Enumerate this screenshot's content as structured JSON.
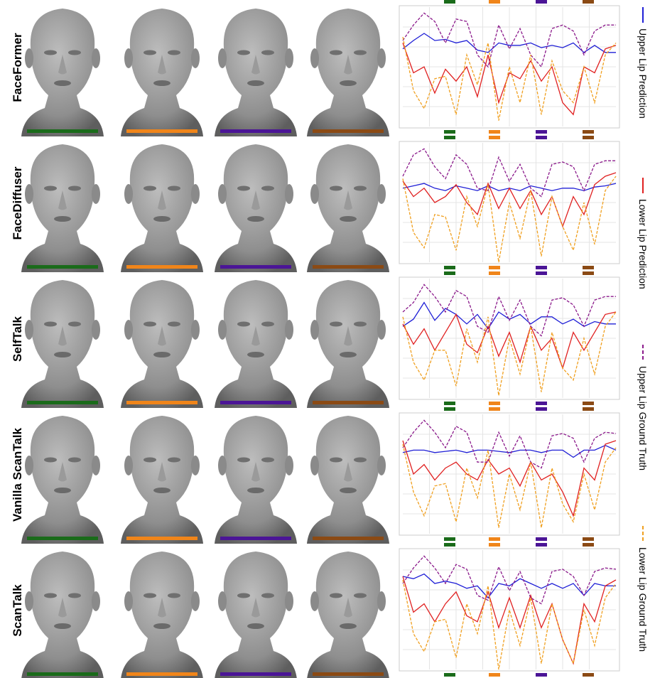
{
  "rows": [
    "FaceFormer",
    "FaceDiffuser",
    "SelfTalk",
    "Vanilla ScanTalk",
    "ScanTalk"
  ],
  "frame_colors": [
    "#1a6b1a",
    "#f0851a",
    "#4b1596",
    "#8b4a14"
  ],
  "chart_data": [
    {
      "type": "line",
      "grid": true,
      "xlim": [
        0,
        100
      ],
      "ylim": [
        0,
        1
      ],
      "markers": [
        22,
        43,
        65,
        87
      ],
      "x": [
        0,
        5,
        10,
        15,
        20,
        25,
        30,
        35,
        40,
        45,
        50,
        55,
        60,
        65,
        70,
        75,
        80,
        85,
        90,
        95,
        100
      ],
      "series": [
        {
          "name": "Upper Lip Prediction",
          "color": "#1f1fd6",
          "style": "solid",
          "values": [
            0.65,
            0.72,
            0.78,
            0.72,
            0.73,
            0.7,
            0.72,
            0.64,
            0.62,
            0.7,
            0.68,
            0.68,
            0.7,
            0.66,
            0.68,
            0.66,
            0.7,
            0.62,
            0.68,
            0.62,
            0.62
          ]
        },
        {
          "name": "Lower Lip Prediction",
          "color": "#e02020",
          "style": "solid",
          "values": [
            0.7,
            0.45,
            0.5,
            0.28,
            0.48,
            0.38,
            0.5,
            0.25,
            0.6,
            0.2,
            0.45,
            0.4,
            0.55,
            0.38,
            0.5,
            0.2,
            0.1,
            0.5,
            0.45,
            0.65,
            0.68
          ]
        },
        {
          "name": "Upper Lip Ground Truth",
          "color": "#8b1a8b",
          "style": "dashed",
          "values": [
            0.72,
            0.85,
            0.95,
            0.88,
            0.7,
            0.9,
            0.88,
            0.6,
            0.5,
            0.85,
            0.65,
            0.82,
            0.6,
            0.5,
            0.82,
            0.85,
            0.8,
            0.6,
            0.8,
            0.85,
            0.85
          ]
        },
        {
          "name": "Lower Lip Ground Truth",
          "color": "#f0a020",
          "style": "dashed",
          "values": [
            0.75,
            0.3,
            0.15,
            0.4,
            0.42,
            0.1,
            0.6,
            0.35,
            0.7,
            0.05,
            0.5,
            0.2,
            0.6,
            0.1,
            0.55,
            0.3,
            0.2,
            0.5,
            0.2,
            0.6,
            0.7
          ]
        }
      ]
    },
    {
      "type": "line",
      "grid": true,
      "xlim": [
        0,
        100
      ],
      "ylim": [
        0,
        1
      ],
      "markers": [
        22,
        43,
        65,
        87
      ],
      "x": [
        0,
        5,
        10,
        15,
        20,
        25,
        30,
        35,
        40,
        45,
        50,
        55,
        60,
        65,
        70,
        75,
        80,
        85,
        90,
        95,
        100
      ],
      "series": [
        {
          "name": "Upper Lip Prediction",
          "color": "#1f1fd6",
          "style": "solid",
          "values": [
            0.62,
            0.64,
            0.66,
            0.62,
            0.6,
            0.64,
            0.62,
            0.6,
            0.64,
            0.6,
            0.62,
            0.6,
            0.64,
            0.62,
            0.6,
            0.62,
            0.62,
            0.6,
            0.63,
            0.64,
            0.66
          ]
        },
        {
          "name": "Lower Lip Prediction",
          "color": "#e02020",
          "style": "solid",
          "values": [
            0.68,
            0.55,
            0.62,
            0.5,
            0.55,
            0.65,
            0.5,
            0.4,
            0.66,
            0.45,
            0.62,
            0.45,
            0.6,
            0.4,
            0.55,
            0.3,
            0.55,
            0.4,
            0.65,
            0.72,
            0.75
          ]
        },
        {
          "name": "Upper Lip Ground Truth",
          "color": "#8b1a8b",
          "style": "dashed",
          "values": [
            0.72,
            0.9,
            0.95,
            0.8,
            0.7,
            0.9,
            0.82,
            0.62,
            0.6,
            0.88,
            0.68,
            0.82,
            0.62,
            0.55,
            0.82,
            0.84,
            0.8,
            0.6,
            0.82,
            0.85,
            0.85
          ]
        },
        {
          "name": "Lower Lip Ground Truth",
          "color": "#f0a020",
          "style": "dashed",
          "values": [
            0.7,
            0.25,
            0.12,
            0.4,
            0.38,
            0.1,
            0.55,
            0.3,
            0.65,
            0.0,
            0.5,
            0.2,
            0.6,
            0.05,
            0.55,
            0.3,
            0.1,
            0.5,
            0.15,
            0.6,
            0.72
          ]
        }
      ]
    },
    {
      "type": "line",
      "grid": true,
      "xlim": [
        0,
        100
      ],
      "ylim": [
        0,
        1
      ],
      "markers": [
        22,
        43,
        65,
        87
      ],
      "x": [
        0,
        5,
        10,
        15,
        20,
        25,
        30,
        35,
        40,
        45,
        50,
        55,
        60,
        65,
        70,
        75,
        80,
        85,
        90,
        95,
        100
      ],
      "series": [
        {
          "name": "Upper Lip Prediction",
          "color": "#1f1fd6",
          "style": "solid",
          "values": [
            0.6,
            0.66,
            0.8,
            0.65,
            0.75,
            0.7,
            0.62,
            0.7,
            0.58,
            0.72,
            0.66,
            0.7,
            0.62,
            0.68,
            0.68,
            0.62,
            0.66,
            0.6,
            0.64,
            0.62,
            0.62
          ]
        },
        {
          "name": "Lower Lip Prediction",
          "color": "#e02020",
          "style": "solid",
          "values": [
            0.62,
            0.45,
            0.58,
            0.4,
            0.55,
            0.7,
            0.45,
            0.38,
            0.6,
            0.35,
            0.55,
            0.3,
            0.6,
            0.4,
            0.5,
            0.25,
            0.55,
            0.4,
            0.55,
            0.7,
            0.72
          ]
        },
        {
          "name": "Upper Lip Ground Truth",
          "color": "#8b1a8b",
          "style": "dashed",
          "values": [
            0.72,
            0.8,
            0.95,
            0.85,
            0.72,
            0.9,
            0.85,
            0.6,
            0.55,
            0.85,
            0.65,
            0.82,
            0.6,
            0.52,
            0.82,
            0.84,
            0.78,
            0.6,
            0.82,
            0.85,
            0.85
          ]
        },
        {
          "name": "Lower Lip Ground Truth",
          "color": "#f0a020",
          "style": "dashed",
          "values": [
            0.68,
            0.3,
            0.15,
            0.4,
            0.4,
            0.1,
            0.58,
            0.3,
            0.68,
            0.02,
            0.5,
            0.2,
            0.6,
            0.05,
            0.55,
            0.25,
            0.15,
            0.5,
            0.2,
            0.6,
            0.72
          ]
        }
      ]
    },
    {
      "type": "line",
      "grid": true,
      "xlim": [
        0,
        100
      ],
      "ylim": [
        0,
        1
      ],
      "markers": [
        22,
        43,
        65,
        87
      ],
      "x": [
        0,
        5,
        10,
        15,
        20,
        25,
        30,
        35,
        40,
        45,
        50,
        55,
        60,
        65,
        70,
        75,
        80,
        85,
        90,
        95,
        100
      ],
      "series": [
        {
          "name": "Upper Lip Prediction",
          "color": "#1f1fd6",
          "style": "solid",
          "values": [
            0.68,
            0.7,
            0.7,
            0.68,
            0.69,
            0.7,
            0.68,
            0.7,
            0.7,
            0.69,
            0.68,
            0.7,
            0.7,
            0.68,
            0.7,
            0.7,
            0.64,
            0.7,
            0.7,
            0.74,
            0.7
          ]
        },
        {
          "name": "Lower Lip Prediction",
          "color": "#e02020",
          "style": "solid",
          "values": [
            0.78,
            0.5,
            0.58,
            0.45,
            0.55,
            0.6,
            0.5,
            0.45,
            0.62,
            0.5,
            0.55,
            0.4,
            0.6,
            0.45,
            0.5,
            0.35,
            0.15,
            0.55,
            0.45,
            0.75,
            0.78
          ]
        },
        {
          "name": "Upper Lip Ground Truth",
          "color": "#8b1a8b",
          "style": "dashed",
          "values": [
            0.72,
            0.85,
            0.95,
            0.85,
            0.72,
            0.9,
            0.85,
            0.6,
            0.6,
            0.85,
            0.65,
            0.82,
            0.6,
            0.55,
            0.82,
            0.84,
            0.8,
            0.6,
            0.8,
            0.85,
            0.84
          ]
        },
        {
          "name": "Lower Lip Ground Truth",
          "color": "#f0a020",
          "style": "dashed",
          "values": [
            0.75,
            0.35,
            0.15,
            0.4,
            0.42,
            0.1,
            0.55,
            0.3,
            0.7,
            0.05,
            0.5,
            0.2,
            0.6,
            0.05,
            0.55,
            0.25,
            0.1,
            0.5,
            0.2,
            0.6,
            0.72
          ]
        }
      ]
    },
    {
      "type": "line",
      "grid": true,
      "xlim": [
        0,
        100
      ],
      "ylim": [
        0,
        1
      ],
      "markers": [
        22,
        43,
        65,
        87
      ],
      "x": [
        0,
        5,
        10,
        15,
        20,
        25,
        30,
        35,
        40,
        45,
        50,
        55,
        60,
        65,
        70,
        75,
        80,
        85,
        90,
        95,
        100
      ],
      "series": [
        {
          "name": "Upper Lip Prediction",
          "color": "#1f1fd6",
          "style": "solid",
          "values": [
            0.78,
            0.76,
            0.8,
            0.72,
            0.74,
            0.72,
            0.68,
            0.7,
            0.6,
            0.72,
            0.7,
            0.76,
            0.72,
            0.68,
            0.72,
            0.68,
            0.72,
            0.62,
            0.72,
            0.7,
            0.7
          ]
        },
        {
          "name": "Lower Lip Prediction",
          "color": "#e02020",
          "style": "solid",
          "values": [
            0.78,
            0.48,
            0.55,
            0.4,
            0.55,
            0.65,
            0.45,
            0.4,
            0.65,
            0.35,
            0.6,
            0.35,
            0.62,
            0.35,
            0.55,
            0.25,
            0.05,
            0.55,
            0.4,
            0.7,
            0.75
          ]
        },
        {
          "name": "Upper Lip Ground Truth",
          "color": "#8b1a8b",
          "style": "dashed",
          "values": [
            0.72,
            0.85,
            0.95,
            0.85,
            0.72,
            0.88,
            0.84,
            0.62,
            0.58,
            0.86,
            0.66,
            0.82,
            0.6,
            0.55,
            0.82,
            0.84,
            0.78,
            0.62,
            0.82,
            0.85,
            0.84
          ]
        },
        {
          "name": "Lower Lip Ground Truth",
          "color": "#f0a020",
          "style": "dashed",
          "values": [
            0.75,
            0.3,
            0.15,
            0.4,
            0.42,
            0.1,
            0.55,
            0.3,
            0.7,
            0.0,
            0.5,
            0.2,
            0.6,
            0.05,
            0.55,
            0.25,
            0.05,
            0.5,
            0.2,
            0.6,
            0.72
          ]
        }
      ]
    }
  ]
}
